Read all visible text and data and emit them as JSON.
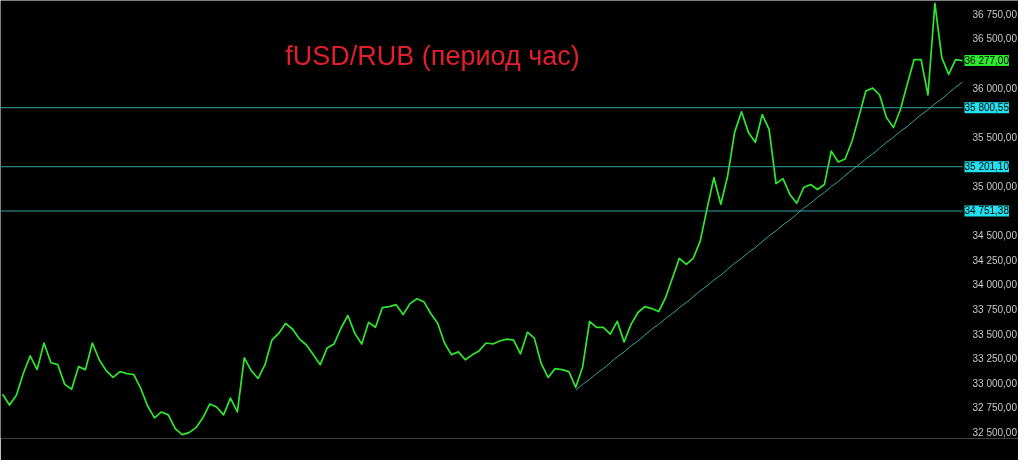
{
  "chart_data": {
    "type": "line",
    "title": "fUSD/RUB (период час)",
    "categories": [
      null,
      null,
      null,
      null,
      null,
      null,
      null,
      null,
      null,
      null,
      null,
      null,
      null,
      null,
      null,
      null,
      null,
      null,
      null,
      null,
      null,
      null,
      null,
      null,
      null,
      null,
      null,
      null,
      null,
      null,
      null,
      null,
      null,
      null,
      null,
      null,
      null,
      null,
      null,
      null,
      null,
      null,
      null,
      null,
      null,
      null,
      null,
      null,
      null,
      null,
      null,
      null,
      null,
      null,
      null,
      null,
      null,
      null,
      null,
      null,
      null,
      null,
      null,
      null,
      null,
      null,
      null,
      null,
      null,
      null,
      null,
      null,
      null,
      null,
      null,
      null,
      null,
      null,
      null,
      null,
      null,
      null,
      null,
      null,
      null,
      null,
      null,
      null,
      null,
      null,
      null,
      null,
      null,
      null,
      null,
      null,
      null,
      null,
      null,
      null,
      null,
      null,
      null,
      null,
      null,
      null,
      null,
      null,
      null,
      null,
      null,
      null,
      null,
      null,
      null,
      null,
      null,
      null,
      null,
      null,
      null,
      null,
      null,
      null,
      null,
      null,
      null,
      null,
      null,
      null,
      null,
      null,
      null,
      null,
      null,
      null,
      null,
      null,
      null,
      null
    ],
    "series": [
      {
        "color": "#2ee82e",
        "values": [
          32890,
          32780,
          32880,
          33100,
          33280,
          33140,
          33410,
          33210,
          33190,
          32990,
          32940,
          33170,
          33140,
          33410,
          33240,
          33130,
          33060,
          33120,
          33100,
          33090,
          32950,
          32770,
          32650,
          32710,
          32680,
          32540,
          32480,
          32500,
          32550,
          32650,
          32790,
          32760,
          32680,
          32850,
          32710,
          33260,
          33130,
          33050,
          33190,
          33440,
          33510,
          33610,
          33550,
          33450,
          33390,
          33290,
          33190,
          33360,
          33400,
          33560,
          33690,
          33510,
          33400,
          33620,
          33570,
          33770,
          33780,
          33800,
          33700,
          33810,
          33860,
          33830,
          33710,
          33610,
          33410,
          33290,
          33320,
          33240,
          33290,
          33330,
          33410,
          33400,
          33430,
          33450,
          33440,
          33300,
          33520,
          33460,
          33200,
          33060,
          33150,
          33140,
          33120,
          32960,
          33170,
          33630,
          33570,
          33570,
          33500,
          33630,
          33420,
          33600,
          33720,
          33780,
          33760,
          33730,
          33870,
          34070,
          34270,
          34210,
          34270,
          34440,
          34770,
          35090,
          34820,
          35110,
          35550,
          35760,
          35550,
          35450,
          35730,
          35580,
          35030,
          35080,
          34920,
          34830,
          34990,
          35020,
          34970,
          35020,
          35360,
          35250,
          35280,
          35460,
          35710,
          35970,
          36000,
          35930,
          35700,
          35600,
          35780,
          36040,
          36290,
          36290,
          35930,
          36860,
          36310,
          36140,
          36290,
          36280
        ]
      },
      {
        "type": "line",
        "color": "#3aa0a0",
        "values": [
          null,
          null,
          null,
          null,
          null,
          null,
          null,
          null,
          null,
          null,
          null,
          null,
          null,
          null,
          null,
          null,
          null,
          null,
          null,
          null,
          null,
          null,
          null,
          null,
          null,
          null,
          null,
          null,
          null,
          null,
          null,
          null,
          null,
          null,
          null,
          null,
          null,
          null,
          null,
          null,
          null,
          null,
          null,
          null,
          null,
          null,
          null,
          null,
          null,
          null,
          null,
          null,
          null,
          null,
          null,
          null,
          null,
          null,
          null,
          null,
          null,
          null,
          null,
          null,
          null,
          null,
          null,
          null,
          null,
          null,
          null,
          null,
          null,
          null,
          null,
          null,
          null,
          null,
          null,
          null,
          null,
          null,
          null,
          32930,
          32990,
          33040,
          33100,
          33150,
          33210,
          33270,
          33320,
          33380,
          33430,
          33490,
          33550,
          33600,
          33660,
          33710,
          33770,
          33820,
          33880,
          33940,
          33990,
          34050,
          34100,
          34160,
          34220,
          34270,
          34330,
          34380,
          34440,
          34500,
          34550,
          34610,
          34660,
          34720,
          34780,
          34830,
          34890,
          34940,
          35000,
          35050,
          35110,
          35170,
          35220,
          35280,
          35330,
          35390,
          35450,
          35500,
          35560,
          35610,
          35670,
          35730,
          35780,
          35840,
          35890,
          35950,
          36010,
          36060
        ]
      }
    ],
    "ylim": [
      32440,
      36890
    ],
    "yticks": [
      {
        "value": 32500,
        "label": "32 500,00"
      },
      {
        "value": 32750,
        "label": "32 750,00"
      },
      {
        "value": 33000,
        "label": "33 000,00"
      },
      {
        "value": 33250,
        "label": "33 250,00"
      },
      {
        "value": 33500,
        "label": "33 500,00"
      },
      {
        "value": 33750,
        "label": "33 750,00"
      },
      {
        "value": 34000,
        "label": "34 000,00"
      },
      {
        "value": 34250,
        "label": "34 250,00"
      },
      {
        "value": 34500,
        "label": "34 500,00"
      },
      {
        "value": 35000,
        "label": "35 000,00"
      },
      {
        "value": 35500,
        "label": "35 500,00"
      },
      {
        "value": 36000,
        "label": "36 000,00"
      },
      {
        "value": 36500,
        "label": "36 500,00"
      },
      {
        "value": 36750,
        "label": "36 750,00"
      }
    ],
    "ref_lines": [
      {
        "axis": "y",
        "value": 35800.55,
        "label": "35 800,55",
        "color": "#3aa0a0"
      },
      {
        "axis": "y",
        "value": 35201.1,
        "label": "35 201,10",
        "color": "#3aa0a0"
      },
      {
        "axis": "y",
        "value": 34751.38,
        "label": "34 751,38",
        "color": "#3aa0a0"
      }
    ],
    "annotations": [
      "36 277,00"
    ],
    "tick_labels": "y",
    "grid": false,
    "line_style": "solid"
  }
}
